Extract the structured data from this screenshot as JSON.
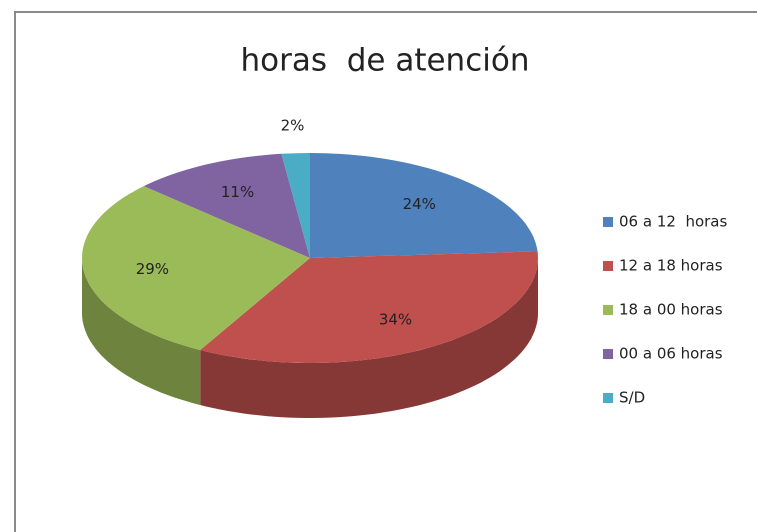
{
  "chart_data": {
    "type": "pie",
    "title": "horas  de atención",
    "categories": [
      "06 a 12  horas",
      "12 a 18 horas",
      "18 a 00 horas",
      "00 a 06 horas",
      "S/D"
    ],
    "values": [
      24,
      34,
      29,
      11,
      2
    ],
    "value_labels": [
      "24%",
      "34%",
      "29%",
      "11%",
      "2%"
    ],
    "colors": [
      "#4f81bd",
      "#c0504d",
      "#9bbb59",
      "#8064a2",
      "#4bacc6"
    ],
    "legend": "right"
  }
}
